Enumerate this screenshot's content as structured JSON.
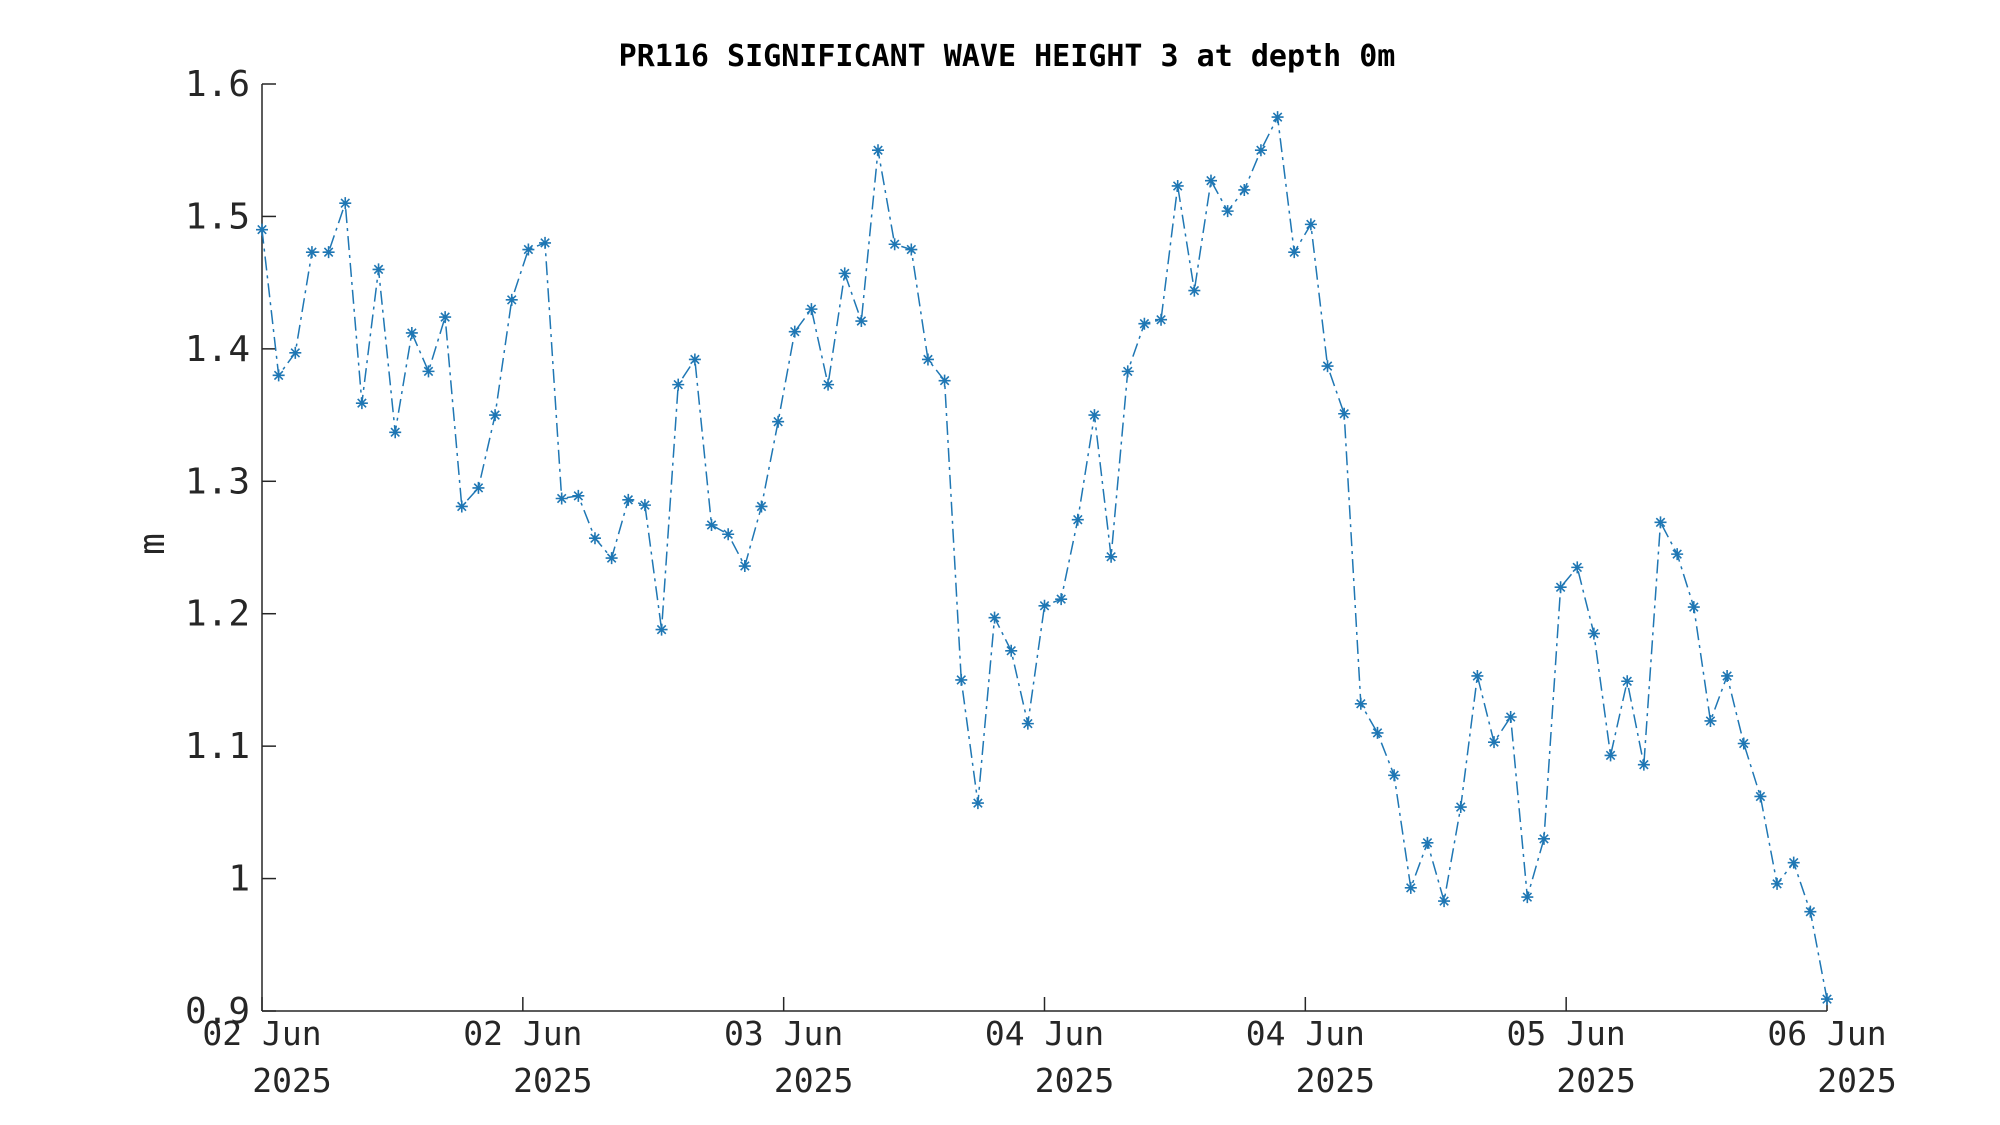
{
  "chart_data": {
    "type": "line",
    "title": "PR116 SIGNIFICANT WAVE HEIGHT 3 at depth 0m",
    "xlabel": "",
    "ylabel": "m",
    "ylim": [
      0.9,
      1.6
    ],
    "yticks": [
      "0.9",
      "1",
      "1.1",
      "1.2",
      "1.3",
      "1.4",
      "1.5",
      "1.6"
    ],
    "xticks": [
      {
        "day": "02 Jun",
        "year": "2025"
      },
      {
        "day": "02 Jun",
        "year": "2025"
      },
      {
        "day": "03 Jun",
        "year": "2025"
      },
      {
        "day": "04 Jun",
        "year": "2025"
      },
      {
        "day": "04 Jun",
        "year": "2025"
      },
      {
        "day": "05 Jun",
        "year": "2025"
      },
      {
        "day": "06 Jun",
        "year": "2025"
      }
    ],
    "grid": false,
    "legend": "none",
    "color": "#1f77b4",
    "line_style": "dash-dot",
    "marker": "asterisk",
    "series": [
      {
        "values": [
          1.49,
          1.38,
          1.397,
          1.473,
          1.473,
          1.51,
          1.359,
          1.46,
          1.337,
          1.412,
          1.383,
          1.424,
          1.281,
          1.295,
          1.35,
          1.437,
          1.475,
          1.48,
          1.287,
          1.289,
          1.257,
          1.242,
          1.286,
          1.282,
          1.188,
          1.373,
          1.392,
          1.267,
          1.26,
          1.236,
          1.281,
          1.345,
          1.413,
          1.43,
          1.373,
          1.457,
          1.421,
          1.55,
          1.479,
          1.475,
          1.392,
          1.376,
          1.15,
          1.057,
          1.197,
          1.172,
          1.117,
          1.206,
          1.211,
          1.271,
          1.35,
          1.243,
          1.383,
          1.419,
          1.422,
          1.523,
          1.444,
          1.527,
          1.504,
          1.52,
          1.55,
          1.575,
          1.473,
          1.494,
          1.387,
          1.351,
          1.132,
          1.11,
          1.078,
          0.993,
          1.027,
          0.983,
          1.054,
          1.153,
          1.103,
          1.122,
          0.986,
          1.03,
          1.22,
          1.235,
          1.185,
          1.093,
          1.149,
          1.086,
          1.269,
          1.245,
          1.205,
          1.119,
          1.153,
          1.102,
          1.062,
          0.996,
          1.012,
          0.975,
          0.909
        ]
      }
    ]
  }
}
